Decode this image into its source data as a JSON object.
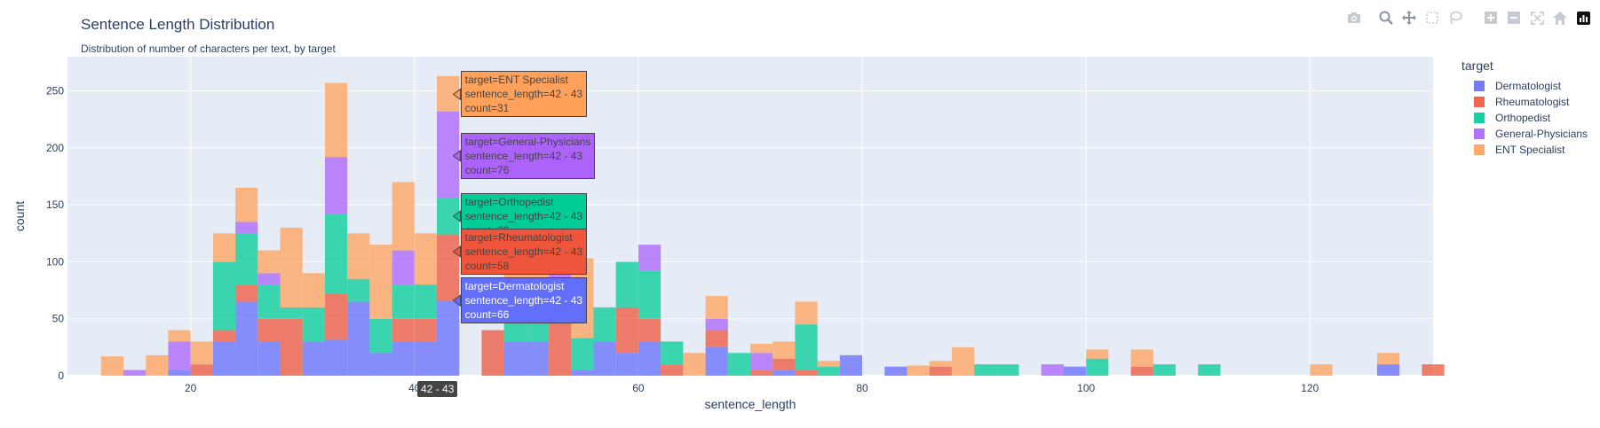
{
  "title": "Sentence Length Distribution",
  "subtitle": "Distribution of number of characters per text, by target",
  "legend": {
    "title": "target"
  },
  "hover": {
    "x_label": "42 - 43",
    "boxes": [
      {
        "lines": [
          "target=ENT Specialist",
          "sentence_length=42 - 43",
          "count=31"
        ],
        "color": "#FFA15A",
        "text": "#444444",
        "y": 247
      },
      {
        "lines": [
          "target=General-Physicians",
          "sentence_length=42 - 43",
          "count=76"
        ],
        "color": "#AB63FA",
        "text": "#444444",
        "y": 193
      },
      {
        "lines": [
          "target=Orthopedist",
          "sentence_length=42 - 43",
          "count=32"
        ],
        "color": "#00CC96",
        "text": "#444444",
        "y": 140
      },
      {
        "lines": [
          "target=Rheumatologist",
          "sentence_length=42 - 43",
          "count=58"
        ],
        "color": "#EF553B",
        "text": "#444444",
        "y": 109
      },
      {
        "lines": [
          "target=Dermatologist",
          "sentence_length=42 - 43",
          "count=66"
        ],
        "color": "#636EFA",
        "text": "#ffffff",
        "y": 66
      }
    ]
  },
  "modebar_icons": [
    "camera-icon",
    "zoom-icon",
    "pan-icon",
    "box-select-icon",
    "lasso-select-icon",
    "zoom-in-icon",
    "zoom-out-icon",
    "autoscale-icon",
    "reset-axes-icon",
    "plotly-logo-icon"
  ],
  "chart_data": {
    "type": "bar",
    "barmode": "stack",
    "xlabel": "sentence_length",
    "ylabel": "count",
    "xlim": [
      9,
      131
    ],
    "ylim": [
      0,
      280
    ],
    "bin_width": 2,
    "x_ticks": [
      20,
      40,
      60,
      80,
      100,
      120
    ],
    "y_ticks": [
      0,
      50,
      100,
      150,
      200,
      250
    ],
    "grid": true,
    "legend_position": "top-right",
    "bin_starts": [
      10,
      12,
      14,
      16,
      18,
      20,
      22,
      24,
      26,
      28,
      30,
      32,
      34,
      36,
      38,
      40,
      42,
      44,
      46,
      48,
      50,
      52,
      54,
      56,
      58,
      60,
      62,
      64,
      66,
      68,
      70,
      72,
      74,
      76,
      78,
      80,
      82,
      84,
      86,
      88,
      90,
      92,
      94,
      96,
      98,
      100,
      102,
      104,
      106,
      108,
      110,
      112,
      114,
      116,
      118,
      120,
      122,
      124,
      126,
      128,
      130
    ],
    "series": [
      {
        "name": "Dermatologist",
        "color": "#636EFA",
        "values": [
          0,
          0,
          0,
          0,
          5,
          0,
          30,
          65,
          30,
          0,
          30,
          32,
          65,
          20,
          30,
          30,
          66,
          0,
          0,
          30,
          30,
          0,
          5,
          30,
          20,
          30,
          0,
          0,
          25,
          0,
          0,
          5,
          0,
          0,
          18,
          0,
          8,
          0,
          0,
          0,
          0,
          0,
          0,
          0,
          8,
          0,
          0,
          0,
          0,
          0,
          0,
          0,
          0,
          0,
          0,
          0,
          0,
          0,
          10,
          0,
          0
        ]
      },
      {
        "name": "Rheumatologist",
        "color": "#EF553B",
        "values": [
          0,
          0,
          0,
          0,
          0,
          10,
          10,
          15,
          20,
          50,
          0,
          40,
          0,
          0,
          20,
          20,
          58,
          0,
          40,
          0,
          0,
          60,
          0,
          0,
          40,
          20,
          10,
          0,
          15,
          0,
          5,
          10,
          5,
          0,
          0,
          0,
          0,
          0,
          8,
          0,
          0,
          0,
          0,
          0,
          0,
          0,
          0,
          8,
          0,
          0,
          0,
          0,
          0,
          0,
          0,
          0,
          0,
          0,
          0,
          0,
          10
        ]
      },
      {
        "name": "Orthopedist",
        "color": "#00CC96",
        "values": [
          0,
          0,
          0,
          0,
          0,
          0,
          60,
          45,
          30,
          10,
          30,
          70,
          20,
          30,
          30,
          30,
          32,
          0,
          0,
          30,
          50,
          0,
          28,
          30,
          40,
          42,
          20,
          0,
          0,
          20,
          0,
          0,
          40,
          8,
          0,
          0,
          0,
          0,
          0,
          0,
          10,
          10,
          0,
          0,
          0,
          15,
          0,
          0,
          10,
          0,
          10,
          0,
          0,
          0,
          0,
          0,
          0,
          0,
          0,
          0,
          0
        ]
      },
      {
        "name": "General-Physicians",
        "color": "#AB63FA",
        "values": [
          0,
          0,
          5,
          0,
          25,
          0,
          0,
          10,
          10,
          0,
          0,
          50,
          0,
          0,
          30,
          0,
          76,
          0,
          0,
          0,
          0,
          50,
          0,
          0,
          0,
          23,
          0,
          0,
          10,
          0,
          15,
          0,
          0,
          0,
          0,
          0,
          0,
          0,
          0,
          0,
          0,
          0,
          0,
          10,
          0,
          0,
          0,
          0,
          0,
          0,
          0,
          0,
          0,
          0,
          0,
          0,
          0,
          0,
          0,
          0,
          0
        ]
      },
      {
        "name": "ENT Specialist",
        "color": "#FFA15A",
        "values": [
          0,
          17,
          0,
          18,
          10,
          20,
          25,
          30,
          20,
          70,
          30,
          65,
          40,
          65,
          60,
          45,
          31,
          0,
          0,
          35,
          20,
          45,
          70,
          0,
          0,
          0,
          0,
          20,
          20,
          0,
          8,
          15,
          20,
          5,
          0,
          0,
          0,
          9,
          5,
          25,
          0,
          0,
          0,
          0,
          0,
          8,
          0,
          15,
          0,
          0,
          0,
          0,
          0,
          0,
          0,
          10,
          0,
          0,
          10,
          0,
          0
        ]
      }
    ]
  }
}
